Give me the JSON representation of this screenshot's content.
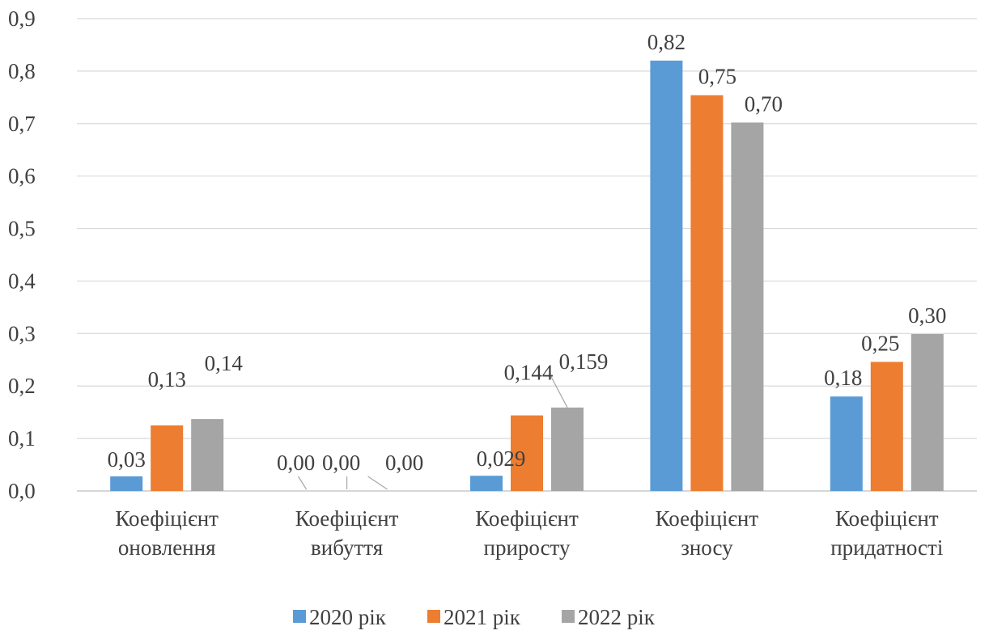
{
  "chart_data": {
    "type": "bar",
    "categories": [
      [
        "Коефіцієнт",
        "оновлення"
      ],
      [
        "Коефіцієнт",
        "вибуття"
      ],
      [
        "Коефіцієнт",
        "приросту"
      ],
      [
        "Коефіцієнт",
        "зносу"
      ],
      [
        "Коефіцієнт",
        "придатності"
      ]
    ],
    "series": [
      {
        "name": "2020 рік",
        "color": "#5B9BD5",
        "values": [
          0.028,
          0.0,
          0.029,
          0.82,
          0.18
        ],
        "labels": [
          "0,03",
          "0,00",
          "0,029",
          "0,82",
          "0,18"
        ]
      },
      {
        "name": "2021 рік",
        "color": "#ED7D31",
        "values": [
          0.125,
          0.0,
          0.144,
          0.754,
          0.246
        ],
        "labels": [
          "0,13",
          "0,00",
          "0,144",
          "0,75",
          "0,25"
        ]
      },
      {
        "name": "2022 рік",
        "color": "#A5A5A5",
        "values": [
          0.137,
          0.0,
          0.159,
          0.702,
          0.299
        ],
        "labels": [
          "0,14",
          "0,00",
          "0,159",
          "0,70",
          "0,30"
        ]
      }
    ],
    "yticks": [
      "0,0",
      "0,1",
      "0,2",
      "0,3",
      "0,4",
      "0,5",
      "0,6",
      "0,7",
      "0,8",
      "0,9"
    ],
    "ylim": [
      0,
      0.9
    ],
    "grid": true,
    "legend": "bottom"
  }
}
